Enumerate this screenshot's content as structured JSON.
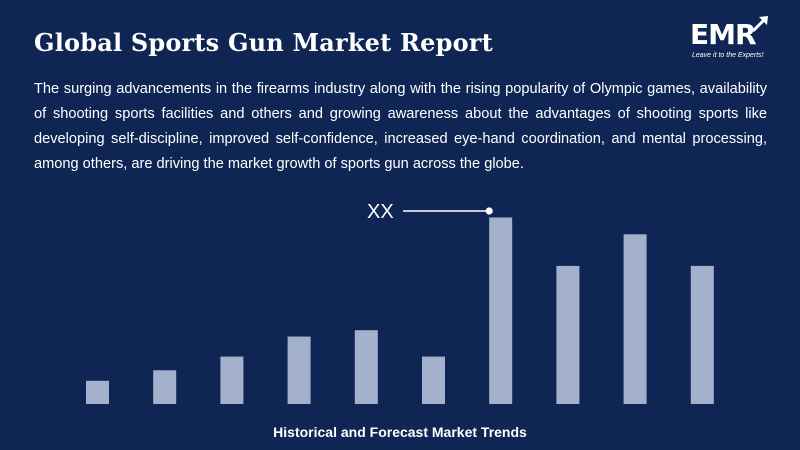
{
  "header": {
    "title": "Global Sports Gun Market Report",
    "description": "The surging advancements in the firearms industry along with the rising popularity of Olympic games, availability of shooting sports facilities and others and growing awareness about the advantages of shooting sports like developing self-discipline, improved self-confidence, increased eye-hand coordination, and mental processing, among others, are driving the market growth of sports gun across the globe."
  },
  "logo": {
    "text": "EMR",
    "tagline": "Leave it to the Experts!"
  },
  "colors": {
    "background": "#0f2654",
    "bar": "#a4b1cc",
    "text": "#ffffff"
  },
  "chart_data": {
    "type": "bar",
    "values": [
      22,
      32,
      45,
      64,
      70,
      45,
      177,
      131,
      161,
      131
    ],
    "annotation": "XX",
    "annotated_index": 6,
    "xlabel": "Historical and Forecast Market Trends",
    "ylim": [
      0,
      185
    ]
  }
}
